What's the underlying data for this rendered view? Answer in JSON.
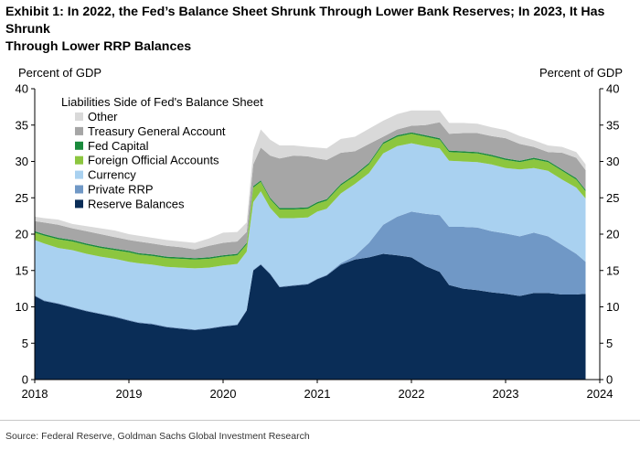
{
  "title_line1": "Exhibit 1: In 2022, the Fed’s Balance Sheet Shrunk Through Lower Bank Reserves; In 2023, It Has Shrunk",
  "title_line2": "Through Lower RRP Balances",
  "source": "Source: Federal Reserve, Goldman Sachs Global Investment Research",
  "colors": {
    "Other": "#d9d9d9",
    "Treasury General Account": "#a6a6a6",
    "Fed Capital": "#1a8a3c",
    "Foreign Official Accounts": "#8cc63f",
    "Currency": "#a9d1f0",
    "Private RRP": "#7098c6",
    "Reserve Balances": "#0a2d57"
  },
  "chart_data": {
    "type": "area",
    "stacked": true,
    "xlabel": "",
    "ylabel_left": "Percent of GDP",
    "ylabel_right": "Percent of GDP",
    "xlim": [
      2018.0,
      2024.0
    ],
    "ylim": [
      0,
      40
    ],
    "yticks": [
      0,
      5,
      10,
      15,
      20,
      25,
      30,
      35,
      40
    ],
    "xticks": [
      "2018",
      "2019",
      "2020",
      "2021",
      "2022",
      "2023",
      "2024"
    ],
    "legend_title": "Liabilities Side of Fed's Balance Sheet",
    "legend_position": "top-left",
    "grid": false,
    "x": [
      2018.0,
      2018.1,
      2018.25,
      2018.4,
      2018.55,
      2018.7,
      2018.85,
      2019.0,
      2019.1,
      2019.25,
      2019.4,
      2019.55,
      2019.7,
      2019.85,
      2020.0,
      2020.15,
      2020.25,
      2020.32,
      2020.4,
      2020.5,
      2020.6,
      2020.75,
      2020.9,
      2021.0,
      2021.1,
      2021.25,
      2021.4,
      2021.55,
      2021.7,
      2021.85,
      2022.0,
      2022.15,
      2022.3,
      2022.4,
      2022.55,
      2022.7,
      2022.85,
      2023.0,
      2023.15,
      2023.3,
      2023.45,
      2023.6,
      2023.75,
      2023.85
    ],
    "series": [
      {
        "name": "Reserve Balances",
        "values": [
          11.5,
          10.8,
          10.4,
          9.9,
          9.4,
          9.0,
          8.6,
          8.1,
          7.8,
          7.6,
          7.2,
          7.0,
          6.8,
          7.0,
          7.3,
          7.5,
          9.5,
          15.0,
          15.8,
          14.5,
          12.7,
          12.9,
          13.1,
          13.8,
          14.3,
          15.8,
          16.5,
          16.8,
          17.3,
          17.1,
          16.8,
          15.6,
          14.8,
          13.0,
          12.5,
          12.3,
          12.0,
          11.8,
          11.5,
          11.9,
          11.9,
          11.7,
          11.7,
          11.8
        ]
      },
      {
        "name": "Private RRP",
        "values": [
          0.1,
          0.1,
          0.1,
          0.1,
          0.1,
          0.1,
          0.1,
          0.1,
          0.1,
          0.1,
          0.1,
          0.1,
          0.1,
          0.1,
          0.1,
          0.1,
          0.1,
          0.1,
          0.1,
          0.1,
          0.1,
          0.1,
          0.1,
          0.1,
          0.1,
          0.2,
          0.5,
          2.0,
          4.0,
          5.3,
          6.3,
          7.2,
          7.8,
          8.0,
          8.5,
          8.6,
          8.4,
          8.3,
          8.2,
          8.3,
          7.8,
          6.8,
          5.6,
          4.4
        ]
      },
      {
        "name": "Currency",
        "values": [
          7.6,
          7.8,
          7.6,
          7.8,
          7.8,
          7.8,
          7.9,
          8.0,
          8.1,
          8.1,
          8.2,
          8.3,
          8.4,
          8.3,
          8.3,
          8.3,
          8.0,
          9.3,
          10.0,
          9.0,
          9.4,
          9.2,
          9.1,
          9.2,
          9.1,
          9.6,
          9.9,
          9.6,
          9.8,
          9.7,
          9.4,
          9.3,
          9.2,
          9.1,
          9.0,
          9.0,
          9.2,
          9.0,
          9.2,
          8.9,
          9.0,
          9.0,
          9.1,
          8.7
        ]
      },
      {
        "name": "Foreign Official Accounts",
        "values": [
          1.0,
          1.1,
          1.2,
          1.2,
          1.2,
          1.2,
          1.2,
          1.3,
          1.2,
          1.2,
          1.2,
          1.2,
          1.2,
          1.2,
          1.2,
          1.2,
          1.0,
          2.0,
          1.3,
          1.2,
          1.2,
          1.2,
          1.2,
          1.1,
          1.1,
          1.1,
          1.1,
          1.2,
          1.3,
          1.3,
          1.3,
          1.3,
          1.2,
          1.2,
          1.2,
          1.2,
          1.1,
          1.1,
          1.0,
          1.2,
          1.2,
          1.2,
          1.1,
          1.0
        ]
      },
      {
        "name": "Fed Capital",
        "values": [
          0.2,
          0.2,
          0.2,
          0.2,
          0.2,
          0.2,
          0.2,
          0.2,
          0.2,
          0.2,
          0.2,
          0.2,
          0.2,
          0.2,
          0.2,
          0.2,
          0.2,
          0.2,
          0.2,
          0.2,
          0.2,
          0.2,
          0.2,
          0.2,
          0.2,
          0.2,
          0.2,
          0.2,
          0.2,
          0.2,
          0.2,
          0.2,
          0.2,
          0.2,
          0.2,
          0.2,
          0.2,
          0.2,
          0.2,
          0.2,
          0.2,
          0.2,
          0.2,
          0.2
        ]
      },
      {
        "name": "Treasury General Account",
        "values": [
          1.4,
          1.6,
          1.8,
          1.6,
          1.7,
          1.7,
          1.6,
          1.5,
          1.6,
          1.5,
          1.5,
          1.4,
          1.2,
          1.6,
          1.7,
          1.7,
          1.5,
          3.0,
          4.5,
          5.8,
          6.8,
          7.2,
          7.0,
          6.0,
          5.4,
          4.3,
          3.2,
          2.6,
          0.8,
          0.8,
          0.9,
          1.4,
          2.2,
          2.3,
          2.5,
          2.6,
          2.6,
          2.8,
          2.3,
          1.5,
          1.2,
          2.3,
          2.8,
          2.7
        ]
      },
      {
        "name": "Other",
        "values": [
          0.6,
          0.6,
          0.7,
          0.6,
          0.7,
          0.8,
          0.9,
          0.8,
          0.8,
          0.8,
          0.8,
          0.8,
          0.9,
          1.0,
          1.4,
          1.3,
          1.3,
          1.9,
          2.5,
          2.2,
          1.8,
          1.4,
          1.3,
          1.5,
          1.6,
          1.9,
          2.0,
          2.1,
          2.2,
          2.1,
          2.1,
          2.0,
          1.6,
          1.5,
          1.4,
          1.3,
          1.2,
          1.1,
          1.1,
          0.9,
          0.9,
          0.8,
          0.8,
          0.8
        ]
      }
    ]
  }
}
